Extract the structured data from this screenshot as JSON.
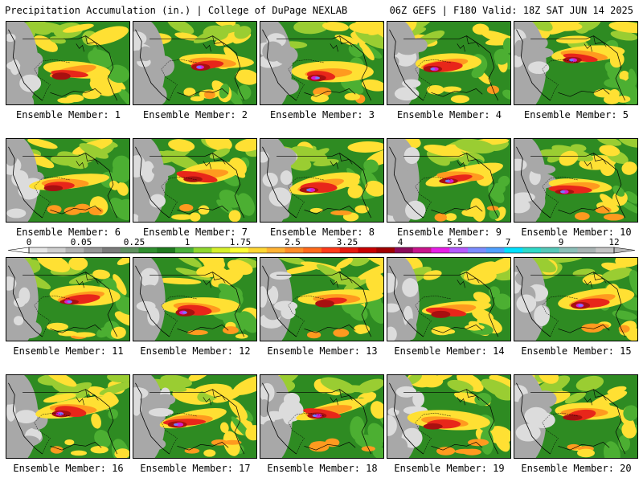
{
  "header": {
    "title": "Precipitation Accumulation (in.) | College of DuPage NEXLAB",
    "run_info": "06Z GEFS | F180 Valid: 18Z SAT JUN 14 2025"
  },
  "colorbar": {
    "tick_labels": [
      "0",
      "0.05",
      "0.25",
      "1",
      "1.75",
      "2.5",
      "3.25",
      "4",
      "5.5",
      "7",
      "9",
      "12"
    ],
    "colors": [
      "#e6e6e6",
      "#cfcfcf",
      "#b2b2b2",
      "#969696",
      "#7a7a7a",
      "#5f8f5f",
      "#2f8f2f",
      "#1f7a1f",
      "#49b03a",
      "#8fd62d",
      "#d6ef2a",
      "#ffff33",
      "#ffd633",
      "#ffb233",
      "#ff8c26",
      "#ff6a1a",
      "#ff3b1a",
      "#e6190f",
      "#c80000",
      "#a00000",
      "#8b0a5a",
      "#c8148c",
      "#e61ee6",
      "#b45aff",
      "#7a8cff",
      "#4fa0ff",
      "#00e0ff",
      "#2fd9c8",
      "#55c7b8",
      "#8cbfb8",
      "#a9b3b3",
      "#c4c4c4"
    ],
    "palette": {
      "light_gray": "#dcdcdc",
      "mid_gray": "#a8a8a8",
      "dark_green": "#2e8b22",
      "green": "#4caf32",
      "light_green": "#9acd32",
      "yellow": "#ffe033",
      "orange": "#ff9a1f",
      "red": "#e8261a",
      "dark_red": "#a81010",
      "magenta": "#d81ecf",
      "blue": "#6f7dff",
      "cyan": "#3fd7f0"
    }
  },
  "members": [
    {
      "label": "Ensemble Member: 1"
    },
    {
      "label": "Ensemble Member: 2"
    },
    {
      "label": "Ensemble Member: 3"
    },
    {
      "label": "Ensemble Member: 4"
    },
    {
      "label": "Ensemble Member: 5"
    },
    {
      "label": "Ensemble Member: 6"
    },
    {
      "label": "Ensemble Member: 7"
    },
    {
      "label": "Ensemble Member: 8"
    },
    {
      "label": "Ensemble Member: 9"
    },
    {
      "label": "Ensemble Member: 10"
    },
    {
      "label": "Ensemble Member: 11"
    },
    {
      "label": "Ensemble Member: 12"
    },
    {
      "label": "Ensemble Member: 13"
    },
    {
      "label": "Ensemble Member: 14"
    },
    {
      "label": "Ensemble Member: 15"
    },
    {
      "label": "Ensemble Member: 16"
    },
    {
      "label": "Ensemble Member: 17"
    },
    {
      "label": "Ensemble Member: 18"
    },
    {
      "label": "Ensemble Member: 19"
    },
    {
      "label": "Ensemble Member: 20"
    }
  ]
}
